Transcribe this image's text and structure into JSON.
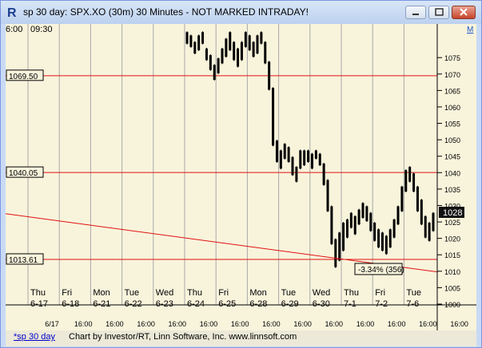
{
  "window": {
    "title": "sp 30 day: SPX.XO (30m) 30 Minutes - NOT MARKED INTRADAY!",
    "app_icon": "r-icon",
    "buttons": [
      "minimize-icon",
      "maximize-icon",
      "close-icon"
    ]
  },
  "chart_header": {
    "left": "6:00",
    "right": "09:30",
    "corner_badge": "M"
  },
  "chart_data": {
    "type": "candlestick",
    "yaxis": {
      "ylim": [
        1000,
        1085
      ],
      "ticks": [
        "1075",
        "1070",
        "1065",
        "1060",
        "1055",
        "1050",
        "1045",
        "1040",
        "1035",
        "1030",
        "1025",
        "1020",
        "1015",
        "1010",
        "1005",
        "1000"
      ]
    },
    "day_labels": [
      {
        "day": "Thu",
        "date": "6-17"
      },
      {
        "day": "Fri",
        "date": "6-18"
      },
      {
        "day": "Mon",
        "date": "6-21"
      },
      {
        "day": "Tue",
        "date": "6-22"
      },
      {
        "day": "Wed",
        "date": "6-23"
      },
      {
        "day": "Thu",
        "date": "6-24"
      },
      {
        "day": "Fri",
        "date": "6-25"
      },
      {
        "day": "Mon",
        "date": "6-28"
      },
      {
        "day": "Tue",
        "date": "6-29"
      },
      {
        "day": "Wed",
        "date": "6-30"
      },
      {
        "day": "Thu",
        "date": "7-1"
      },
      {
        "day": "Fri",
        "date": "7-2"
      },
      {
        "day": "Tue",
        "date": "7-6"
      }
    ],
    "time_labels": [
      "6/17",
      "16:00",
      "16:00",
      "16:00",
      "16:00",
      "16:00",
      "16:00",
      "16:00",
      "16:00",
      "16:00",
      "16:00",
      "16:00",
      "16:00",
      "16:00"
    ],
    "horizontal_lines": [
      {
        "label": "1069.50",
        "value": 1069.5
      },
      {
        "label": "1040.05",
        "value": 1040.05
      },
      {
        "label": "1013.61",
        "value": 1013.61
      }
    ],
    "trendline": {
      "from": {
        "day": "Thu 6-17",
        "value": 1027.5
      },
      "to": {
        "day": "Tue 7-6",
        "value": 1009.8
      }
    },
    "price_badge": "1028",
    "annotation": "-3.34% (356)",
    "series_path": [
      [
        1079,
        1083
      ],
      [
        1078,
        1082
      ],
      [
        1076,
        1080
      ],
      [
        1077,
        1082
      ],
      [
        1079,
        1083
      ],
      [
        1074,
        1078
      ],
      [
        1071,
        1076
      ],
      [
        1068,
        1073
      ],
      [
        1070,
        1075
      ],
      [
        1073,
        1078
      ],
      [
        1075,
        1081
      ],
      [
        1077,
        1083
      ],
      [
        1074,
        1080
      ],
      [
        1072,
        1078
      ],
      [
        1074,
        1080
      ],
      [
        1078,
        1083
      ],
      [
        1077,
        1082
      ],
      [
        1075,
        1080
      ],
      [
        1076,
        1082
      ],
      [
        1079,
        1083
      ],
      [
        1073,
        1080
      ],
      [
        1065,
        1074
      ],
      [
        1048,
        1066
      ],
      [
        1043,
        1050
      ],
      [
        1041,
        1047
      ],
      [
        1044,
        1049
      ],
      [
        1043,
        1048
      ],
      [
        1039,
        1045
      ],
      [
        1037,
        1042
      ],
      [
        1041,
        1047
      ],
      [
        1042,
        1047
      ],
      [
        1043,
        1047
      ],
      [
        1041,
        1046
      ],
      [
        1044,
        1047
      ],
      [
        1042,
        1046
      ],
      [
        1036,
        1043
      ],
      [
        1028,
        1038
      ],
      [
        1018,
        1030
      ],
      [
        1011,
        1020
      ],
      [
        1013,
        1022
      ],
      [
        1016,
        1025
      ],
      [
        1020,
        1026
      ],
      [
        1023,
        1028
      ],
      [
        1021,
        1027
      ],
      [
        1024,
        1029
      ],
      [
        1026,
        1031
      ],
      [
        1025,
        1030
      ],
      [
        1022,
        1028
      ],
      [
        1019,
        1025
      ],
      [
        1017,
        1023
      ],
      [
        1016,
        1022
      ],
      [
        1015,
        1021
      ],
      [
        1017,
        1023
      ],
      [
        1020,
        1026
      ],
      [
        1024,
        1030
      ],
      [
        1028,
        1036
      ],
      [
        1034,
        1041
      ],
      [
        1037,
        1042
      ],
      [
        1034,
        1040
      ],
      [
        1028,
        1036
      ],
      [
        1024,
        1032
      ],
      [
        1020,
        1027
      ],
      [
        1019,
        1025
      ],
      [
        1022,
        1028
      ]
    ]
  },
  "status_bar": {
    "link": "*sp 30 day",
    "credit": "Chart by Investor/RT, Linn Software, Inc. www.linnsoft.com"
  }
}
